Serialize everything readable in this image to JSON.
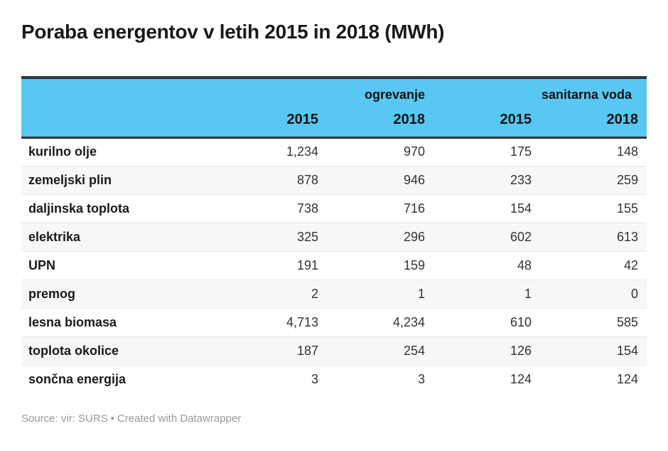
{
  "title": "Poraba energentov v letih 2015 in 2018 (MWh)",
  "table": {
    "column_groups": [
      {
        "label": "ogrevanje"
      },
      {
        "label": "sanitarna voda"
      }
    ],
    "year_headers": [
      "2015",
      "2018",
      "2015",
      "2018"
    ],
    "rows": [
      {
        "label": "kurilno olje",
        "values": [
          "1,234",
          "970",
          "175",
          "148"
        ]
      },
      {
        "label": "zemeljski plin",
        "values": [
          "878",
          "946",
          "233",
          "259"
        ]
      },
      {
        "label": "daljinska toplota",
        "values": [
          "738",
          "716",
          "154",
          "155"
        ]
      },
      {
        "label": "elektrika",
        "values": [
          "325",
          "296",
          "602",
          "613"
        ]
      },
      {
        "label": "UPN",
        "values": [
          "191",
          "159",
          "48",
          "42"
        ]
      },
      {
        "label": "premog",
        "values": [
          "2",
          "1",
          "1",
          "0"
        ]
      },
      {
        "label": "lesna biomasa",
        "values": [
          "4,713",
          "4,234",
          "610",
          "585"
        ]
      },
      {
        "label": "toplota okolice",
        "values": [
          "187",
          "254",
          "126",
          "154"
        ]
      },
      {
        "label": "sončna energija",
        "values": [
          "3",
          "3",
          "124",
          "124"
        ]
      }
    ]
  },
  "footer": {
    "source_text": "Source: vir: SURS",
    "separator": "•",
    "attribution": "Created with Datawrapper"
  },
  "colors": {
    "header_bg": "#58c7f2",
    "border_dark": "#333333",
    "row_alt_bg": "#f7f7f7",
    "row_separator": "#e8e8e8",
    "title_color": "#191919",
    "body_text": "#333333",
    "label_text": "#1a1a1a",
    "footer_text": "#999999"
  },
  "chart_data": {
    "type": "table",
    "title": "Poraba energentov v letih 2015 in 2018 (MWh)",
    "unit": "MWh",
    "column_groups": [
      {
        "label": "ogrevanje",
        "columns": [
          "2015",
          "2018"
        ]
      },
      {
        "label": "sanitarna voda",
        "columns": [
          "2015",
          "2018"
        ]
      }
    ],
    "columns": [
      "ogrevanje 2015",
      "ogrevanje 2018",
      "sanitarna voda 2015",
      "sanitarna voda 2018"
    ],
    "rows": [
      {
        "label": "kurilno olje",
        "values": [
          1234,
          970,
          175,
          148
        ]
      },
      {
        "label": "zemeljski plin",
        "values": [
          878,
          946,
          233,
          259
        ]
      },
      {
        "label": "daljinska toplota",
        "values": [
          738,
          716,
          154,
          155
        ]
      },
      {
        "label": "elektrika",
        "values": [
          325,
          296,
          602,
          613
        ]
      },
      {
        "label": "UPN",
        "values": [
          191,
          159,
          48,
          42
        ]
      },
      {
        "label": "premog",
        "values": [
          2,
          1,
          1,
          0
        ]
      },
      {
        "label": "lesna biomasa",
        "values": [
          4713,
          4234,
          610,
          585
        ]
      },
      {
        "label": "toplota okolice",
        "values": [
          187,
          254,
          126,
          154
        ]
      },
      {
        "label": "sončna energija",
        "values": [
          3,
          3,
          124,
          124
        ]
      }
    ],
    "source": "vir: SURS",
    "attribution": "Created with Datawrapper",
    "layout": {
      "striped_rows": true,
      "header_highlight": true,
      "numbers_aligned": "right"
    }
  }
}
